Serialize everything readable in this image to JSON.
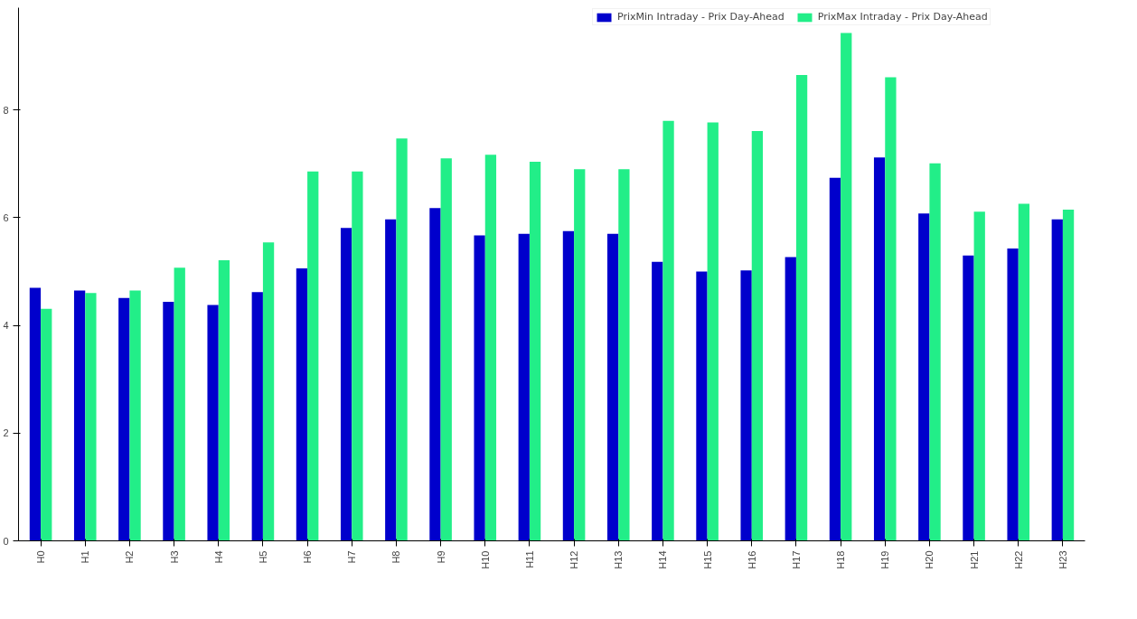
{
  "chart_data": {
    "type": "bar",
    "categories": [
      "H0",
      "H1",
      "H2",
      "H3",
      "H4",
      "H5",
      "H6",
      "H7",
      "H8",
      "H9",
      "H10",
      "H11",
      "H12",
      "H13",
      "H14",
      "H15",
      "H16",
      "H17",
      "H18",
      "H19",
      "H20",
      "H21",
      "H22",
      "H23"
    ],
    "series": [
      {
        "name": "PrixMin Intraday - Prix Day-Ahead",
        "color": "#0000cc",
        "values": [
          4.7,
          4.65,
          4.51,
          4.44,
          4.38,
          4.62,
          5.06,
          5.81,
          5.97,
          6.18,
          5.67,
          5.7,
          5.75,
          5.7,
          5.18,
          5.0,
          5.02,
          5.27,
          6.74,
          7.12,
          6.08,
          5.3,
          5.43,
          5.97
        ]
      },
      {
        "name": "PrixMax Intraday - Prix Day-Ahead",
        "color": "#22ee88",
        "values": [
          4.31,
          4.6,
          4.65,
          5.07,
          5.21,
          5.54,
          6.86,
          6.86,
          7.47,
          7.1,
          7.17,
          7.04,
          6.9,
          6.9,
          7.8,
          7.77,
          7.61,
          8.65,
          9.43,
          8.61,
          7.01,
          6.11,
          6.26,
          6.15
        ]
      }
    ],
    "ylim": [
      0,
      9.9
    ],
    "yticks": [
      0,
      2,
      4,
      6,
      8
    ],
    "grid": false,
    "legend": "top right"
  }
}
